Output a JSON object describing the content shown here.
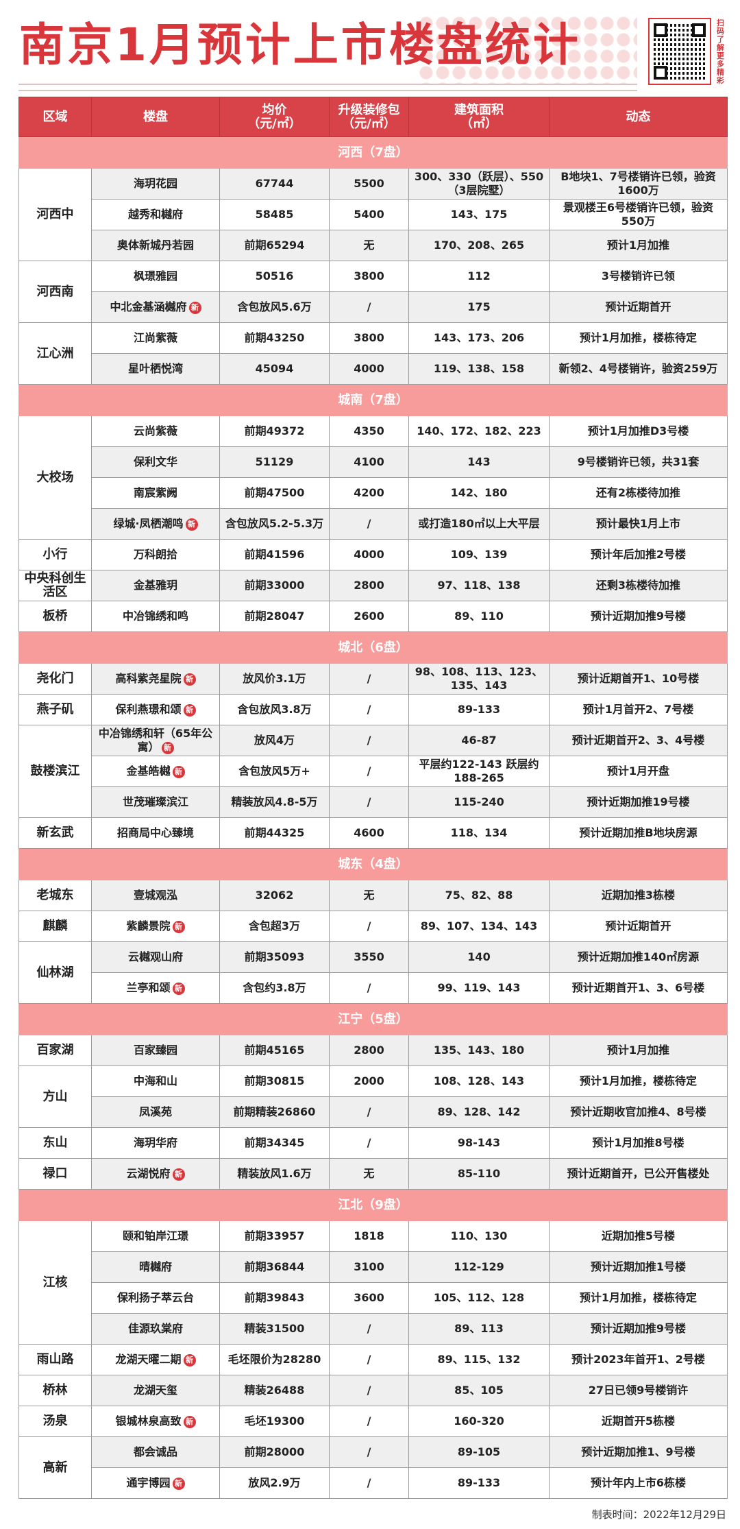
{
  "title": "南京1月预计上市楼盘统计",
  "qr_caption": "扫码了解更多精彩",
  "colors": {
    "accent": "#d8363a",
    "header_bg": "#d8434a",
    "section_bg": "#f89b9b",
    "stripe": "#efefef"
  },
  "badge_label": "新",
  "headers": [
    {
      "line1": "区域",
      "line2": ""
    },
    {
      "line1": "楼盘",
      "line2": ""
    },
    {
      "line1": "均价",
      "line2": "（元/㎡）"
    },
    {
      "line1": "升级装修包",
      "line2": "（元/㎡）"
    },
    {
      "line1": "建筑面积",
      "line2": "（㎡）"
    },
    {
      "line1": "动态",
      "line2": ""
    }
  ],
  "sections": [
    {
      "name": "河西（7盘）",
      "groups": [
        {
          "region": "河西中",
          "rows": [
            {
              "name": "海玥花园",
              "price": "67744",
              "pack": "5500",
              "area": "300、330（跃层）、550（3层院墅）",
              "status": "B地块1、7号楼销许已领，验资1600万"
            },
            {
              "name": "越秀和樾府",
              "price": "58485",
              "pack": "5400",
              "area": "143、175",
              "status": "景观楼王6号楼销许已领，验资550万"
            },
            {
              "name": "奥体新城丹若园",
              "price": "前期65294",
              "pack": "无",
              "area": "170、208、265",
              "status": "预计1月加推"
            }
          ]
        },
        {
          "region": "河西南",
          "rows": [
            {
              "name": "枫璟雅园",
              "price": "50516",
              "pack": "3800",
              "area": "112",
              "status": "3号楼销许已领"
            },
            {
              "name": "中北金基涵樾府",
              "new": true,
              "price": "含包放风5.6万",
              "pack": "/",
              "area": "175",
              "status": "预计近期首开"
            }
          ]
        },
        {
          "region": "江心洲",
          "rows": [
            {
              "name": "江尚紫薇",
              "price": "前期43250",
              "pack": "3800",
              "area": "143、173、206",
              "status": "预计1月加推，楼栋待定"
            },
            {
              "name": "星叶栖悦湾",
              "price": "45094",
              "pack": "4000",
              "area": "119、138、158",
              "status": "新领2、4号楼销许，验资259万"
            }
          ]
        }
      ]
    },
    {
      "name": "城南（7盘）",
      "groups": [
        {
          "region": "大校场",
          "rows": [
            {
              "name": "云尚紫薇",
              "price": "前期49372",
              "pack": "4350",
              "area": "140、172、182、223",
              "status": "预计1月加推D3号楼"
            },
            {
              "name": "保利文华",
              "price": "51129",
              "pack": "4100",
              "area": "143",
              "status": "9号楼销许已领，共31套"
            },
            {
              "name": "南宸紫阙",
              "price": "前期47500",
              "pack": "4200",
              "area": "142、180",
              "status": "还有2栋楼待加推"
            },
            {
              "name": "绿城·凤栖潮鸣",
              "new": true,
              "price": "含包放风5.2-5.3万",
              "pack": "/",
              "area": "或打造180㎡以上大平层",
              "status": "预计最快1月上市"
            }
          ]
        },
        {
          "region": "小行",
          "rows": [
            {
              "name": "万科朗拾",
              "price": "前期41596",
              "pack": "4000",
              "area": "109、139",
              "status": "预计年后加推2号楼"
            }
          ]
        },
        {
          "region": "中央科创生活区",
          "rows": [
            {
              "name": "金基雅玥",
              "price": "前期33000",
              "pack": "2800",
              "area": "97、118、138",
              "status": "还剩3栋楼待加推"
            }
          ]
        },
        {
          "region": "板桥",
          "rows": [
            {
              "name": "中冶锦绣和鸣",
              "price": "前期28047",
              "pack": "2600",
              "area": "89、110",
              "status": "预计近期加推9号楼"
            }
          ]
        }
      ]
    },
    {
      "name": "城北（6盘）",
      "groups": [
        {
          "region": "尧化门",
          "rows": [
            {
              "name": "高科紫尧星院",
              "new": true,
              "price": "放风价3.1万",
              "pack": "/",
              "area": "98、108、113、123、135、143",
              "status": "预计近期首开1、10号楼"
            }
          ]
        },
        {
          "region": "燕子矶",
          "rows": [
            {
              "name": "保利燕璟和颂",
              "new": true,
              "price": "含包放风3.8万",
              "pack": "/",
              "area": "89-133",
              "status": "预计1月首开2、7号楼"
            }
          ]
        },
        {
          "region": "鼓楼滨江",
          "rows": [
            {
              "name": "中冶锦绣和轩（65年公寓）",
              "new": true,
              "price": "放风4万",
              "pack": "/",
              "area": "46-87",
              "status": "预计近期首开2、3、4号楼"
            },
            {
              "name": "金基皓樾",
              "new": true,
              "price": "含包放风5万+",
              "pack": "/",
              "area": "平层约122-143 跃层约188-265",
              "status": "预计1月开盘"
            },
            {
              "name": "世茂璀璨滨江",
              "price": "精装放风4.8-5万",
              "pack": "/",
              "area": "115-240",
              "status": "预计近期加推19号楼"
            }
          ]
        },
        {
          "region": "新玄武",
          "rows": [
            {
              "name": "招商局中心臻境",
              "price": "前期44325",
              "pack": "4600",
              "area": "118、134",
              "status": "预计近期加推B地块房源"
            }
          ]
        }
      ]
    },
    {
      "name": "城东（4盘）",
      "groups": [
        {
          "region": "老城东",
          "rows": [
            {
              "name": "壹城观泓",
              "price": "32062",
              "pack": "无",
              "area": "75、82、88",
              "status": "近期加推3栋楼"
            }
          ]
        },
        {
          "region": "麒麟",
          "rows": [
            {
              "name": "紫麟景院",
              "new": true,
              "price": "含包超3万",
              "pack": "/",
              "area": "89、107、134、143",
              "status": "预计近期首开"
            }
          ]
        },
        {
          "region": "仙林湖",
          "rows": [
            {
              "name": "云樾观山府",
              "price": "前期35093",
              "pack": "3550",
              "area": "140",
              "status": "预计近期加推140㎡房源"
            },
            {
              "name": "兰亭和颂",
              "new": true,
              "price": "含包约3.8万",
              "pack": "/",
              "area": "99、119、143",
              "status": "预计近期首开1、3、6号楼"
            }
          ]
        }
      ]
    },
    {
      "name": "江宁（5盘）",
      "groups": [
        {
          "region": "百家湖",
          "rows": [
            {
              "name": "百家臻园",
              "price": "前期45165",
              "pack": "2800",
              "area": "135、143、180",
              "status": "预计1月加推"
            }
          ]
        },
        {
          "region": "方山",
          "rows": [
            {
              "name": "中海和山",
              "price": "前期30815",
              "pack": "2000",
              "area": "108、128、143",
              "status": "预计1月加推，楼栋待定"
            },
            {
              "name": "凤溪苑",
              "price": "前期精装26860",
              "pack": "/",
              "area": "89、128、142",
              "status": "预计近期收官加推4、8号楼"
            }
          ]
        },
        {
          "region": "东山",
          "rows": [
            {
              "name": "海玥华府",
              "price": "前期34345",
              "pack": "/",
              "area": "98-143",
              "status": "预计1月加推8号楼"
            }
          ]
        },
        {
          "region": "禄口",
          "rows": [
            {
              "name": "云湖悦府",
              "new": true,
              "price": "精装放风1.6万",
              "pack": "无",
              "area": "85-110",
              "status": "预计近期首开，已公开售楼处"
            }
          ]
        }
      ]
    },
    {
      "name": "江北（9盘）",
      "groups": [
        {
          "region": "江核",
          "rows": [
            {
              "name": "颐和铂岸江璟",
              "price": "前期33957",
              "pack": "1818",
              "area": "110、130",
              "status": "近期加推5号楼"
            },
            {
              "name": "晴樾府",
              "price": "前期36844",
              "pack": "3100",
              "area": "112-129",
              "status": "预计近期加推1号楼"
            },
            {
              "name": "保利扬子萃云台",
              "price": "前期39843",
              "pack": "3600",
              "area": "105、112、128",
              "status": "预计1月加推，楼栋待定"
            },
            {
              "name": "佳源玖棠府",
              "price": "精装31500",
              "pack": "/",
              "area": "89、113",
              "status": "预计近期加推9号楼"
            }
          ]
        },
        {
          "region": "雨山路",
          "rows": [
            {
              "name": "龙湖天曜二期",
              "new": true,
              "price": "毛坯限价为28280",
              "pack": "/",
              "area": "89、115、132",
              "status": "预计2023年首开1、2号楼"
            }
          ]
        },
        {
          "region": "桥林",
          "rows": [
            {
              "name": "龙湖天玺",
              "price": "精装26488",
              "pack": "/",
              "area": "85、105",
              "status": "27日已领9号楼销许"
            }
          ]
        },
        {
          "region": "汤泉",
          "rows": [
            {
              "name": "银城林泉高致",
              "new": true,
              "price": "毛坯19300",
              "pack": "/",
              "area": "160-320",
              "status": "近期首开5栋楼"
            }
          ]
        },
        {
          "region": "高新",
          "rows": [
            {
              "name": "都会诚品",
              "price": "前期28000",
              "pack": "/",
              "area": "89-105",
              "status": "预计近期加推1、9号楼"
            },
            {
              "name": "通宇博园",
              "new": true,
              "price": "放风2.9万",
              "pack": "/",
              "area": "89-133",
              "status": "预计年内上市6栋楼"
            }
          ]
        }
      ]
    }
  ],
  "footer": "制表时间：2022年12月29日"
}
